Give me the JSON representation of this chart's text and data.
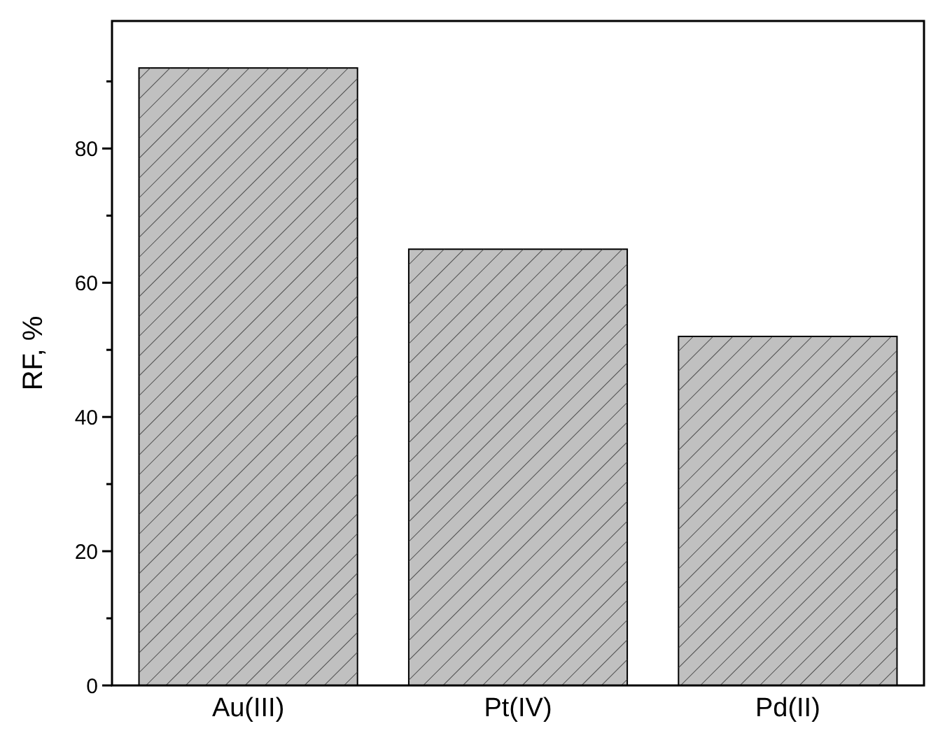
{
  "chart_data": {
    "type": "bar",
    "ylabel": "RF, %",
    "categories": [
      "Au(III)",
      "Pt(IV)",
      "Pd(II)"
    ],
    "values": [
      92,
      65,
      52
    ],
    "color": "#c0c0c0",
    "ylim": [
      0,
      99
    ],
    "yticks": [
      0,
      {
        "value": 10,
        "label": null
      },
      20,
      {
        "value": 30,
        "label": null
      },
      40,
      {
        "value": 50,
        "label": null
      },
      60,
      {
        "value": 70,
        "label": null
      },
      80,
      {
        "value": 90,
        "label": null
      }
    ],
    "grid": false
  }
}
